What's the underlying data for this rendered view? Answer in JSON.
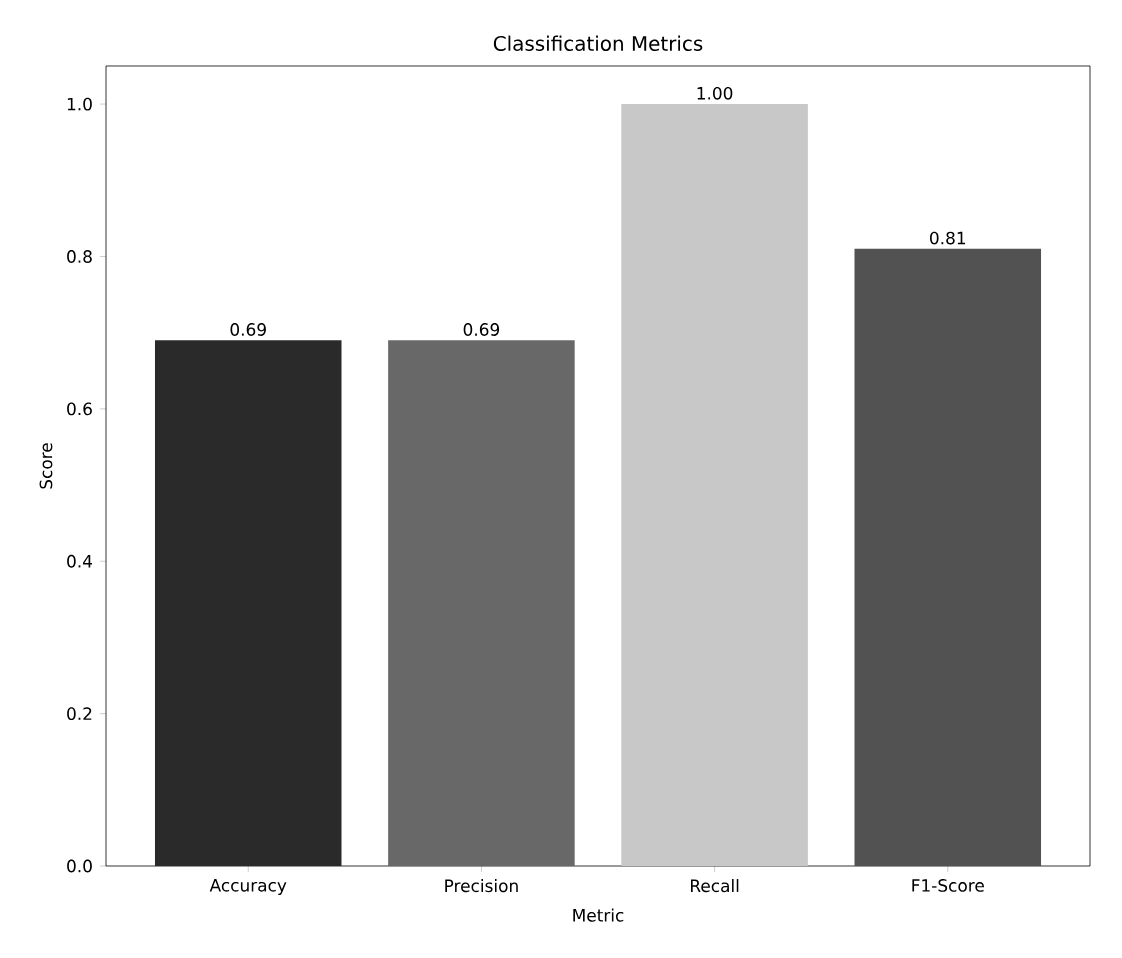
{
  "chart_data": {
    "type": "bar",
    "title": "Classification Metrics",
    "xlabel": "Metric",
    "ylabel": "Score",
    "categories": [
      "Accuracy",
      "Precision",
      "Recall",
      "F1-Score"
    ],
    "values": [
      0.69,
      0.69,
      1.0,
      0.81
    ],
    "colors": [
      "#2a2a2a",
      "#686868",
      "#c8c8c8",
      "#525252"
    ],
    "value_labels": [
      "0.69",
      "0.69",
      "1.00",
      "0.81"
    ],
    "ylim": [
      0,
      1.05
    ],
    "yticks": [
      {
        "value": 0,
        "label": "0.0"
      },
      {
        "value": 0.2,
        "label": "0.2"
      },
      {
        "value": 0.4,
        "label": "0.4"
      },
      {
        "value": 0.6,
        "label": "0.6"
      },
      {
        "value": 0.8,
        "label": "0.8"
      },
      {
        "value": 1.0,
        "label": "1.0"
      }
    ]
  }
}
